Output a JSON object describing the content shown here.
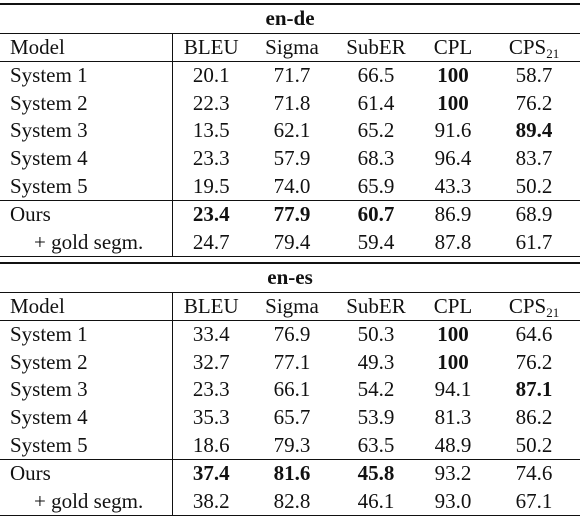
{
  "columns": {
    "model": "Model",
    "metrics": [
      "BLEU",
      "Sigma",
      "SubER",
      "CPL"
    ],
    "cps_base": "CPS",
    "cps_sub": "21"
  },
  "tables": [
    {
      "name": "en-de",
      "rows": [
        {
          "model": "System 1",
          "values": [
            "20.1",
            "71.7",
            "66.5",
            "100",
            "58.7"
          ],
          "bold": [
            false,
            false,
            false,
            true,
            false
          ]
        },
        {
          "model": "System 2",
          "values": [
            "22.3",
            "71.8",
            "61.4",
            "100",
            "76.2"
          ],
          "bold": [
            false,
            false,
            false,
            true,
            false
          ]
        },
        {
          "model": "System 3",
          "values": [
            "13.5",
            "62.1",
            "65.2",
            "91.6",
            "89.4"
          ],
          "bold": [
            false,
            false,
            false,
            false,
            true
          ]
        },
        {
          "model": "System 4",
          "values": [
            "23.3",
            "57.9",
            "68.3",
            "96.4",
            "83.7"
          ],
          "bold": [
            false,
            false,
            false,
            false,
            false
          ]
        },
        {
          "model": "System 5",
          "values": [
            "19.5",
            "74.0",
            "65.9",
            "43.3",
            "50.2"
          ],
          "bold": [
            false,
            false,
            false,
            false,
            false
          ]
        },
        {
          "model": "Ours",
          "values": [
            "23.4",
            "77.9",
            "60.7",
            "86.9",
            "68.9"
          ],
          "bold": [
            true,
            true,
            true,
            false,
            false
          ]
        },
        {
          "model": "+ gold segm.",
          "values": [
            "24.7",
            "79.4",
            "59.4",
            "87.8",
            "61.7"
          ],
          "bold": [
            false,
            false,
            false,
            false,
            false
          ]
        }
      ]
    },
    {
      "name": "en-es",
      "rows": [
        {
          "model": "System 1",
          "values": [
            "33.4",
            "76.9",
            "50.3",
            "100",
            "64.6"
          ],
          "bold": [
            false,
            false,
            false,
            true,
            false
          ]
        },
        {
          "model": "System 2",
          "values": [
            "32.7",
            "77.1",
            "49.3",
            "100",
            "76.2"
          ],
          "bold": [
            false,
            false,
            false,
            true,
            false
          ]
        },
        {
          "model": "System 3",
          "values": [
            "23.3",
            "66.1",
            "54.2",
            "94.1",
            "87.1"
          ],
          "bold": [
            false,
            false,
            false,
            false,
            true
          ]
        },
        {
          "model": "System 4",
          "values": [
            "35.3",
            "65.7",
            "53.9",
            "81.3",
            "86.2"
          ],
          "bold": [
            false,
            false,
            false,
            false,
            false
          ]
        },
        {
          "model": "System 5",
          "values": [
            "18.6",
            "79.3",
            "63.5",
            "48.9",
            "50.2"
          ],
          "bold": [
            false,
            false,
            false,
            false,
            false
          ]
        },
        {
          "model": "Ours",
          "values": [
            "37.4",
            "81.6",
            "45.8",
            "93.2",
            "74.6"
          ],
          "bold": [
            true,
            true,
            true,
            false,
            false
          ]
        },
        {
          "model": "+ gold segm.",
          "values": [
            "38.2",
            "82.8",
            "46.1",
            "93.0",
            "67.1"
          ],
          "bold": [
            false,
            false,
            false,
            false,
            false
          ]
        }
      ]
    }
  ]
}
